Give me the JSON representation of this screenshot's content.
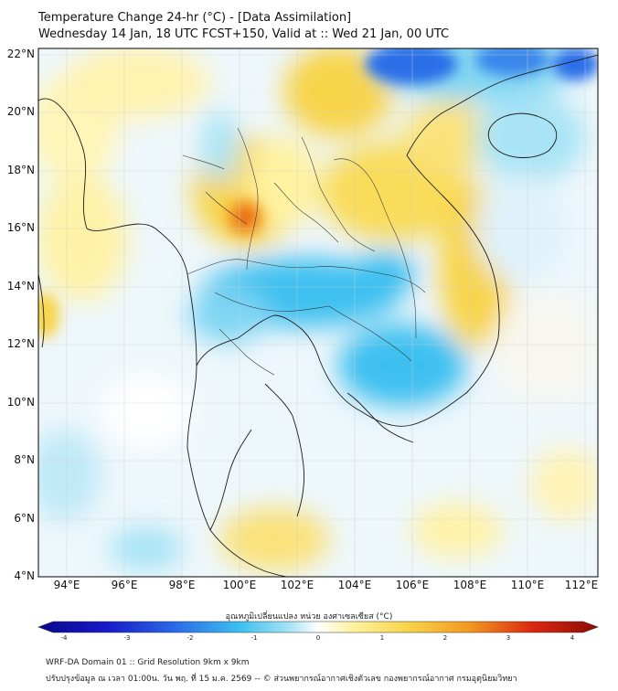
{
  "header": {
    "title": "Temperature Change 24-hr (°C) - [Data Assimilation]",
    "subtitle": "Wednesday 14 Jan, 18 UTC FCST+150, Valid at :: Wed 21 Jan, 00 UTC"
  },
  "map": {
    "lat_labels": [
      "22°N",
      "20°N",
      "18°N",
      "16°N",
      "14°N",
      "12°N",
      "10°N",
      "8°N",
      "6°N",
      "4°N"
    ],
    "lon_labels": [
      "94°E",
      "96°E",
      "98°E",
      "100°E",
      "102°E",
      "104°E",
      "106°E",
      "108°E",
      "110°E",
      "112°E"
    ],
    "extent": {
      "lon_min": 93,
      "lon_max": 112.4,
      "lat_min": 4,
      "lat_max": 22.2
    }
  },
  "colorbar": {
    "title": "อุณหภูมิเปลี่ยนแปลง หน่วย องศาเซลเซียส (°C)",
    "tick_labels": [
      "-4",
      "-3",
      "-2",
      "-1",
      "0",
      "1",
      "2",
      "3",
      "4"
    ],
    "min": -4,
    "max": 4,
    "colors": [
      "#08088a",
      "#1818c8",
      "#2c6ee8",
      "#3cc0f0",
      "#a8e4f6",
      "#ffffff",
      "#fff2a0",
      "#f8d44a",
      "#f29a20",
      "#dc2a10",
      "#8c0a06"
    ]
  },
  "footer": {
    "line1": "WRF-DA Domain 01 :: Grid Resolution 9km x 9km",
    "line2": "ปรับปรุงข้อมูล ณ เวลา 01:00น. วัน พฤ. ที่ 15 ม.ค. 2569 -- © ส่วนพยากรณ์อากาศเชิงตัวเลข กองพยากรณ์อากาศ กรมอุตุนิยมวิทยา"
  }
}
